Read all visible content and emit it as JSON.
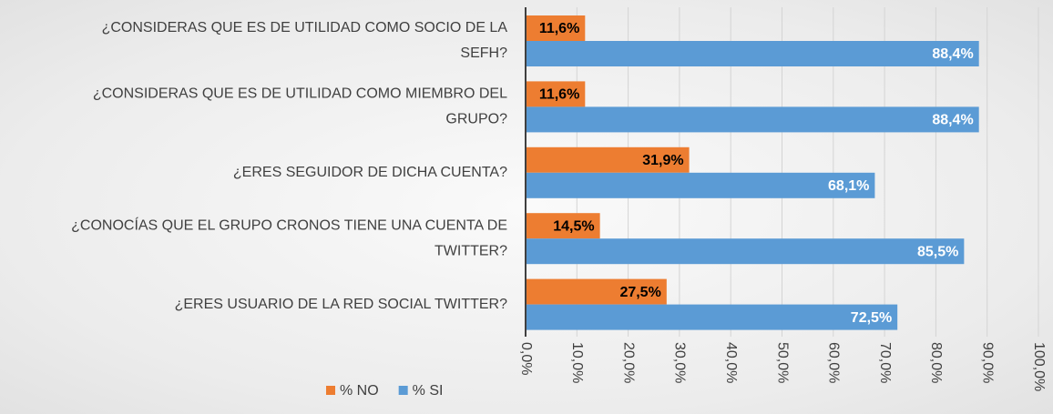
{
  "chart_data": {
    "type": "hbar",
    "categories": [
      "¿CONSIDERAS QUE ES DE UTILIDAD COMO SOCIO DE LA\nSEFH?",
      "¿CONSIDERAS QUE ES DE UTILIDAD COMO MIEMBRO DEL\nGRUPO?",
      "¿ERES SEGUIDOR DE DICHA CUENTA?",
      "¿CONOCÍAS QUE EL GRUPO CRONOS TIENE UNA CUENTA DE\nTWITTER?",
      "¿ERES USUARIO DE LA RED SOCIAL TWITTER?"
    ],
    "series": [
      {
        "name": "% NO",
        "color": "#ed7d31",
        "values": [
          11.6,
          11.6,
          31.9,
          14.5,
          27.5
        ],
        "value_labels": [
          "11,6%",
          "11,6%",
          "31,9%",
          "14,5%",
          "27,5%"
        ]
      },
      {
        "name": "% SI",
        "color": "#5b9bd5",
        "values": [
          88.4,
          88.4,
          68.1,
          85.5,
          72.5
        ],
        "value_labels": [
          "88,4%",
          "88,4%",
          "68,1%",
          "85,5%",
          "72,5%"
        ]
      }
    ],
    "xlim": [
      0,
      100
    ],
    "xticks": [
      {
        "value": 0,
        "label": "0,0%"
      },
      {
        "value": 10,
        "label": "10,0%"
      },
      {
        "value": 20,
        "label": "20,0%"
      },
      {
        "value": 30,
        "label": "30,0%"
      },
      {
        "value": 40,
        "label": "40,0%"
      },
      {
        "value": 50,
        "label": "50,0%"
      },
      {
        "value": 60,
        "label": "60,0%"
      },
      {
        "value": 70,
        "label": "70,0%"
      },
      {
        "value": 80,
        "label": "80,0%"
      },
      {
        "value": 90,
        "label": "90,0%"
      },
      {
        "value": 100,
        "label": "100,0%"
      }
    ],
    "grid": true,
    "legend": "bottom"
  }
}
